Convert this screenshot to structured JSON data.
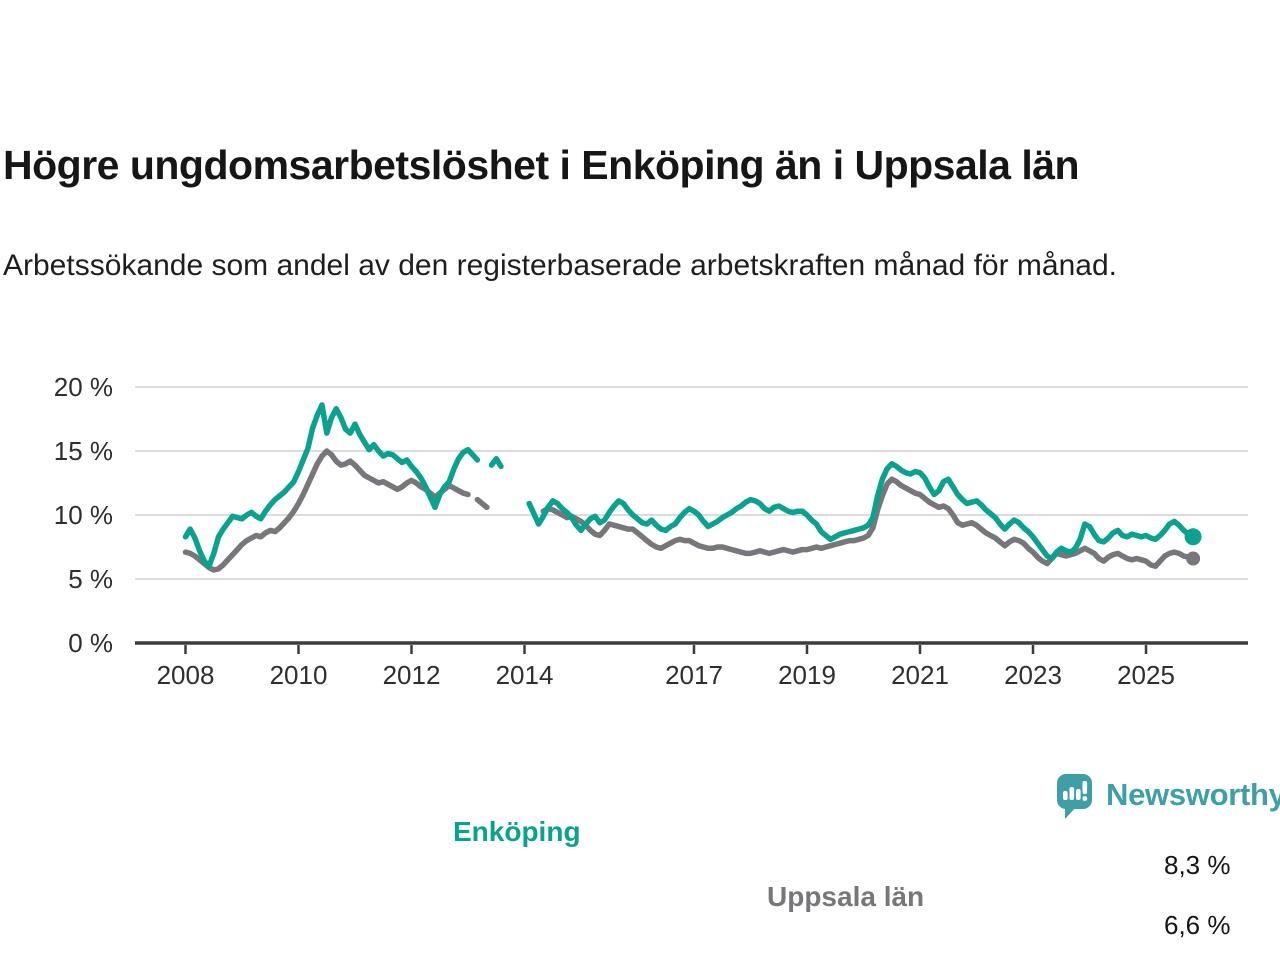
{
  "header": {
    "title": "Högre ungdomsarbetslöshet i Enköping än i Uppsala län",
    "subtitle": "Arbetssökande som andel av den registerbaserade arbetskraften månad för månad."
  },
  "chart_data": {
    "type": "line",
    "unit": "%",
    "frequency": "monthly",
    "start": "2008-01",
    "end": "2025-11",
    "ylim": [
      0,
      20
    ],
    "grid": "horizontal",
    "legend_position": "inline-labels",
    "colors": {
      "axis": "#3c3c3c",
      "grid": "#dcdcdc",
      "tick_text": "#2e2e2e"
    },
    "y_ticks": [
      {
        "value": 20,
        "label": "20 %"
      },
      {
        "value": 15,
        "label": "15 %"
      },
      {
        "value": 10,
        "label": "10 %"
      },
      {
        "value": 5,
        "label": "5 %"
      },
      {
        "value": 0,
        "label": "0 %"
      }
    ],
    "x_ticks": [
      {
        "year": 2008,
        "label": "2008"
      },
      {
        "year": 2010,
        "label": "2010"
      },
      {
        "year": 2012,
        "label": "2012"
      },
      {
        "year": 2014,
        "label": "2014"
      },
      {
        "year": 2017,
        "label": "2017"
      },
      {
        "year": 2019,
        "label": "2019"
      },
      {
        "year": 2021,
        "label": "2021"
      },
      {
        "year": 2023,
        "label": "2023"
      },
      {
        "year": 2025,
        "label": "2025"
      }
    ],
    "series": [
      {
        "name": "enkoping",
        "label": "Enköping",
        "color": "#0aa18f",
        "end_label": "8,3 %",
        "end_value": 8.3,
        "dot_radius": 8.5,
        "values": [
          8.3,
          8.9,
          8.2,
          7.2,
          6.4,
          6.0,
          7.0,
          8.3,
          8.9,
          9.4,
          9.9,
          9.8,
          9.7,
          10.0,
          10.2,
          9.9,
          9.7,
          10.3,
          10.8,
          11.2,
          11.5,
          11.8,
          12.2,
          12.6,
          13.4,
          14.3,
          15.2,
          16.8,
          17.8,
          18.6,
          16.4,
          17.6,
          18.3,
          17.6,
          16.7,
          16.4,
          17.1,
          16.3,
          15.7,
          15.1,
          15.5,
          15.0,
          14.6,
          14.8,
          14.7,
          14.4,
          14.1,
          14.3,
          13.8,
          13.4,
          12.9,
          12.2,
          11.4,
          10.6,
          11.6,
          12.2,
          12.6,
          13.6,
          14.4,
          14.9,
          15.1,
          14.7,
          14.3,
          null,
          null,
          13.9,
          14.4,
          13.8,
          null,
          null,
          null,
          null,
          null,
          10.9,
          10.1,
          9.3,
          9.9,
          10.6,
          11.1,
          10.9,
          10.5,
          10.2,
          9.8,
          9.2,
          8.8,
          9.3,
          9.7,
          9.9,
          9.4,
          9.6,
          10.2,
          10.7,
          11.1,
          10.9,
          10.4,
          10.0,
          9.7,
          9.4,
          9.3,
          9.6,
          9.2,
          8.9,
          8.8,
          9.1,
          9.3,
          9.8,
          10.2,
          10.5,
          10.3,
          10.0,
          9.5,
          9.1,
          9.3,
          9.5,
          9.8,
          10.0,
          10.2,
          10.5,
          10.7,
          11.0,
          11.2,
          11.1,
          10.9,
          10.5,
          10.3,
          10.6,
          10.7,
          10.5,
          10.3,
          10.2,
          10.3,
          10.3,
          10.0,
          9.6,
          9.3,
          8.7,
          8.4,
          8.1,
          8.3,
          8.5,
          8.6,
          8.7,
          8.8,
          8.9,
          9.0,
          9.2,
          9.8,
          11.5,
          12.8,
          13.6,
          14.0,
          13.8,
          13.5,
          13.3,
          13.2,
          13.4,
          13.3,
          12.9,
          12.2,
          11.6,
          11.9,
          12.6,
          12.8,
          12.2,
          11.6,
          11.2,
          10.9,
          11.0,
          11.1,
          10.8,
          10.4,
          10.1,
          9.8,
          9.3,
          8.9,
          9.3,
          9.6,
          9.4,
          9.0,
          8.7,
          8.3,
          7.8,
          7.3,
          6.8,
          6.6,
          7.1,
          7.4,
          7.2,
          7.1,
          7.4,
          8.1,
          9.3,
          9.1,
          8.5,
          8.0,
          7.9,
          8.2,
          8.6,
          8.8,
          8.4,
          8.3,
          8.5,
          8.4,
          8.3,
          8.4,
          8.2,
          8.1,
          8.4,
          8.8,
          9.3,
          9.5,
          9.2,
          8.8,
          8.5,
          8.3
        ]
      },
      {
        "name": "uppsala-lan",
        "label": "Uppsala län",
        "color": "#76767b",
        "end_label": "6,6 %",
        "end_value": 6.6,
        "dot_radius": 7,
        "values": [
          7.1,
          7.0,
          6.8,
          6.5,
          6.2,
          5.9,
          5.7,
          5.8,
          6.1,
          6.5,
          6.9,
          7.3,
          7.7,
          8.0,
          8.2,
          8.4,
          8.3,
          8.6,
          8.8,
          8.7,
          9.0,
          9.4,
          9.8,
          10.3,
          10.9,
          11.6,
          12.4,
          13.2,
          14.0,
          14.6,
          15.0,
          14.7,
          14.2,
          13.9,
          14.0,
          14.2,
          13.9,
          13.5,
          13.1,
          12.9,
          12.7,
          12.5,
          12.6,
          12.4,
          12.2,
          12.0,
          12.2,
          12.5,
          12.7,
          12.5,
          12.2,
          12.0,
          11.7,
          11.4,
          11.7,
          12.0,
          12.3,
          12.1,
          11.9,
          11.7,
          11.6,
          null,
          11.2,
          10.9,
          10.6,
          null,
          null,
          null,
          null,
          null,
          null,
          null,
          null,
          null,
          null,
          null,
          10.3,
          10.5,
          10.4,
          10.2,
          10.0,
          9.8,
          9.9,
          9.7,
          9.5,
          9.2,
          8.8,
          8.5,
          8.4,
          8.8,
          9.3,
          9.2,
          9.1,
          9.0,
          8.9,
          8.9,
          8.6,
          8.3,
          8.0,
          7.7,
          7.5,
          7.4,
          7.6,
          7.8,
          8.0,
          8.1,
          8.0,
          8.0,
          7.8,
          7.6,
          7.5,
          7.4,
          7.4,
          7.5,
          7.5,
          7.4,
          7.3,
          7.2,
          7.1,
          7.0,
          7.0,
          7.1,
          7.2,
          7.1,
          7.0,
          7.1,
          7.2,
          7.3,
          7.2,
          7.1,
          7.2,
          7.3,
          7.3,
          7.4,
          7.5,
          7.4,
          7.5,
          7.6,
          7.7,
          7.8,
          7.9,
          8.0,
          8.0,
          8.1,
          8.2,
          8.4,
          9.0,
          10.4,
          11.5,
          12.4,
          12.8,
          12.6,
          12.3,
          12.1,
          11.9,
          11.7,
          11.6,
          11.3,
          11.0,
          10.8,
          10.6,
          10.7,
          10.5,
          10.0,
          9.4,
          9.2,
          9.3,
          9.4,
          9.2,
          8.9,
          8.6,
          8.4,
          8.2,
          7.9,
          7.6,
          7.9,
          8.1,
          8.0,
          7.8,
          7.4,
          7.1,
          6.7,
          6.4,
          6.2,
          6.6,
          7.0,
          6.9,
          6.8,
          6.9,
          7.0,
          7.2,
          7.4,
          7.2,
          7.0,
          6.6,
          6.4,
          6.7,
          6.9,
          7.0,
          6.8,
          6.6,
          6.5,
          6.6,
          6.5,
          6.4,
          6.1,
          6.0,
          6.4,
          6.8,
          7.0,
          7.1,
          7.0,
          6.8,
          6.7,
          6.6
        ]
      }
    ]
  },
  "footer": {
    "brand": "Newsworthy",
    "brand_color": "#3f9fa6",
    "logo_icon": "speech-bubble-bar-chart-exclamation"
  }
}
